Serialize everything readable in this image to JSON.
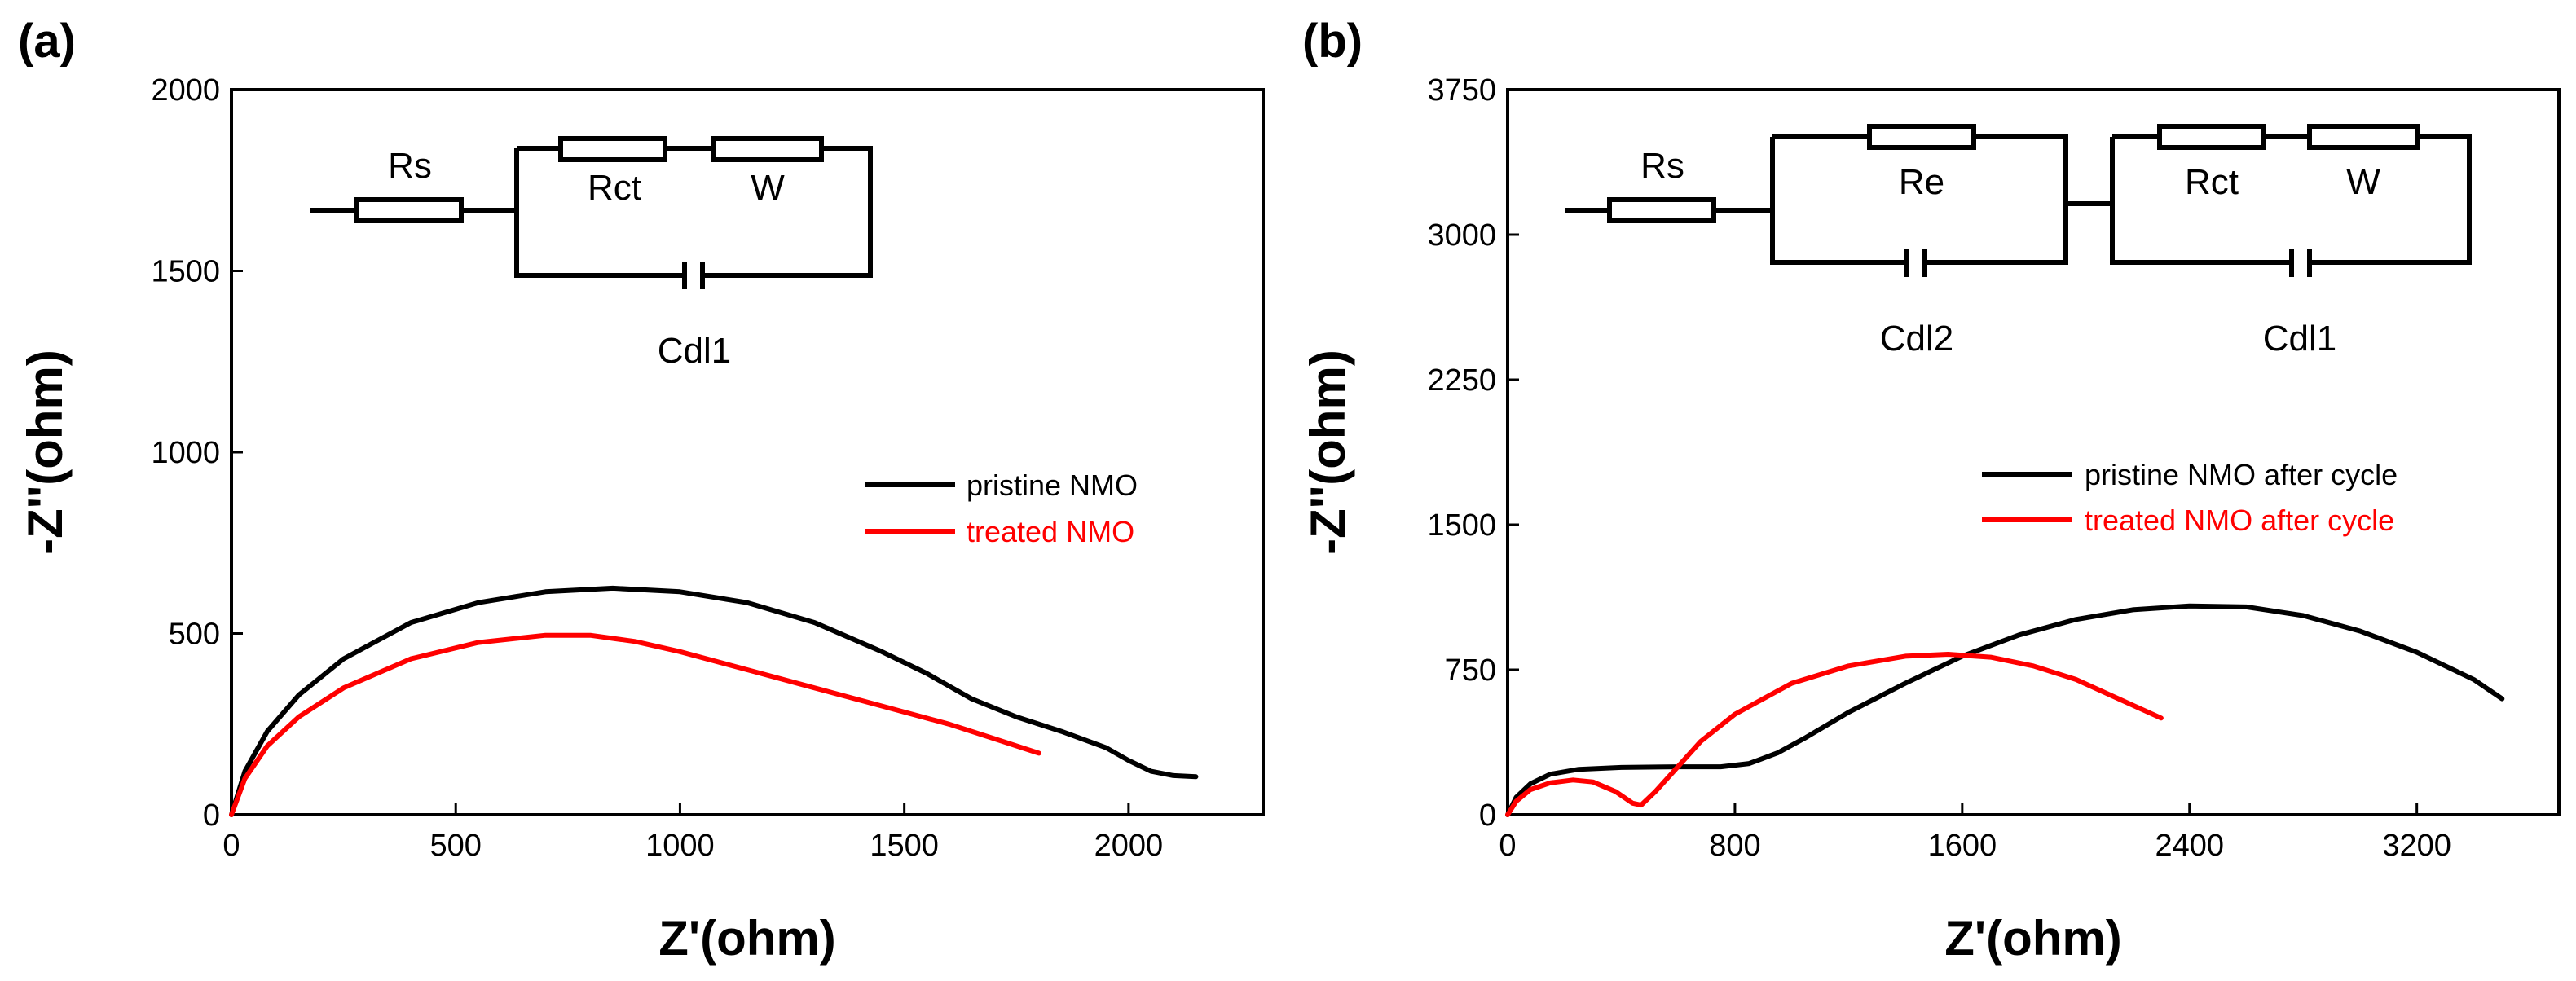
{
  "chart_data": [
    {
      "type": "line",
      "panel_label": "(a)",
      "xlabel": "Z'(ohm)",
      "ylabel": "-Z''(ohm)",
      "xlim": [
        0,
        2300
      ],
      "ylim": [
        0,
        2000
      ],
      "xticks": [
        0,
        500,
        1000,
        1500,
        2000
      ],
      "yticks": [
        0,
        500,
        1000,
        1500,
        2000
      ],
      "legend_position": "middle-right",
      "circuit_labels": [
        "Rs",
        "Rct",
        "W",
        "Cdl1"
      ],
      "series": [
        {
          "name": "pristine NMO",
          "color": "#000000",
          "x": [
            0,
            30,
            80,
            150,
            250,
            400,
            550,
            700,
            850,
            1000,
            1150,
            1300,
            1450,
            1550,
            1650,
            1750,
            1850,
            1950,
            2000,
            2050,
            2100,
            2150
          ],
          "y": [
            0,
            120,
            230,
            330,
            430,
            530,
            585,
            615,
            625,
            615,
            585,
            530,
            450,
            390,
            320,
            270,
            230,
            185,
            150,
            120,
            108,
            105
          ]
        },
        {
          "name": "treated NMO",
          "color": "#ff0000",
          "x": [
            0,
            30,
            80,
            150,
            250,
            400,
            550,
            700,
            800,
            900,
            1000,
            1150,
            1300,
            1450,
            1600,
            1700,
            1800
          ],
          "y": [
            0,
            100,
            190,
            270,
            350,
            430,
            475,
            495,
            495,
            478,
            450,
            400,
            350,
            300,
            250,
            210,
            170
          ]
        }
      ]
    },
    {
      "type": "line",
      "panel_label": "(b)",
      "xlabel": "Z'(ohm)",
      "ylabel": "-Z''(ohm)",
      "xlim": [
        0,
        3700
      ],
      "ylim": [
        0,
        3750
      ],
      "xticks": [
        0,
        800,
        1600,
        2400,
        3200
      ],
      "yticks": [
        0,
        750,
        1500,
        2250,
        3000,
        3750
      ],
      "legend_position": "middle-right",
      "circuit_labels": [
        "Rs",
        "Re",
        "Cdl2",
        "Rct",
        "W",
        "Cdl1"
      ],
      "series": [
        {
          "name": "pristine NMO after cycle",
          "color": "#000000",
          "x": [
            0,
            30,
            80,
            150,
            250,
            400,
            600,
            750,
            850,
            950,
            1050,
            1200,
            1400,
            1600,
            1800,
            2000,
            2200,
            2400,
            2600,
            2800,
            3000,
            3200,
            3400,
            3500
          ],
          "y": [
            0,
            90,
            160,
            210,
            235,
            245,
            248,
            248,
            265,
            320,
            400,
            530,
            680,
            820,
            930,
            1010,
            1060,
            1080,
            1075,
            1030,
            950,
            840,
            700,
            600
          ]
        },
        {
          "name": "treated NMO after cycle",
          "color": "#ff0000",
          "x": [
            0,
            30,
            80,
            150,
            230,
            300,
            380,
            440,
            470,
            520,
            600,
            680,
            800,
            1000,
            1200,
            1400,
            1550,
            1700,
            1850,
            2000,
            2150,
            2300
          ],
          "y": [
            0,
            70,
            130,
            165,
            180,
            170,
            120,
            60,
            50,
            120,
            250,
            380,
            520,
            680,
            770,
            820,
            830,
            815,
            770,
            700,
            600,
            500
          ]
        }
      ]
    }
  ]
}
